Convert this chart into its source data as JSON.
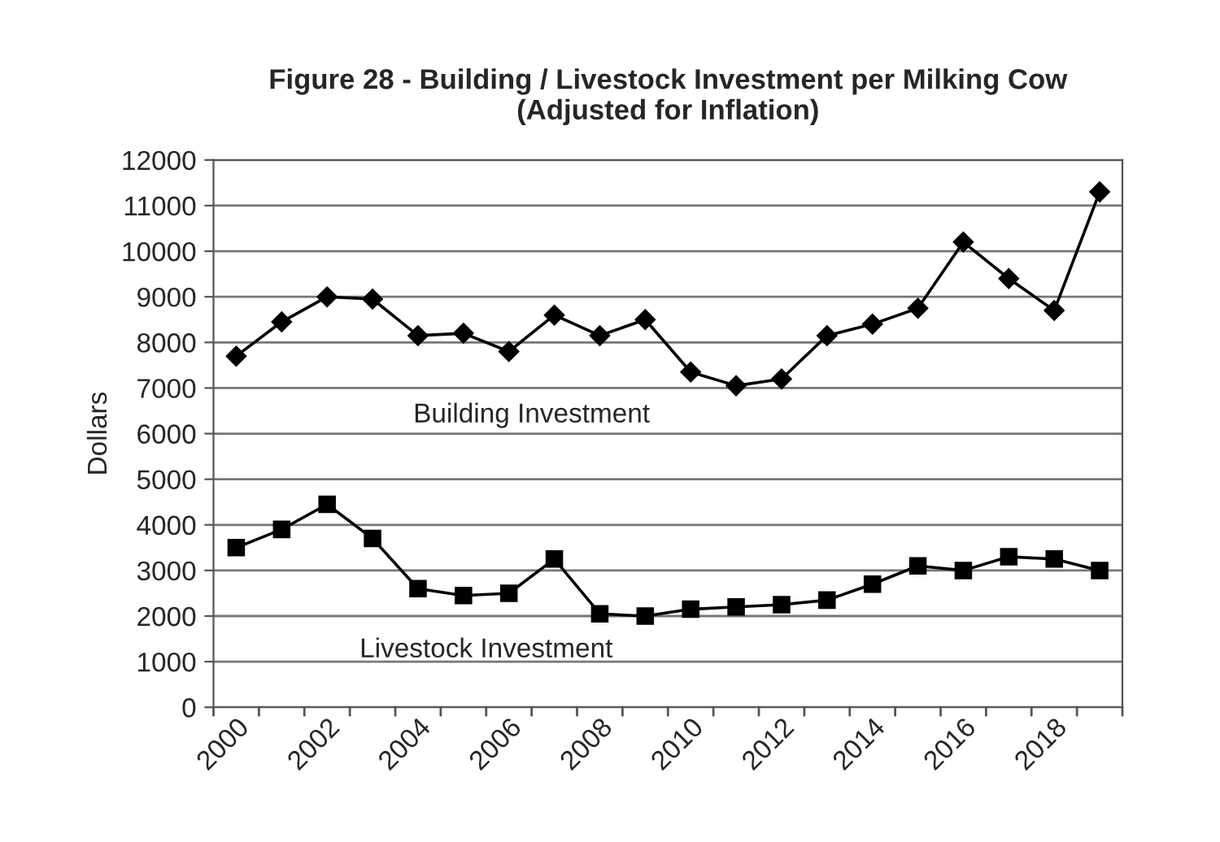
{
  "chart_data": {
    "type": "line",
    "title": "Figure 28 - Building / Livestock Investment per Milking Cow\n(Adjusted for Inflation)",
    "ylabel": "Dollars",
    "categories": [
      "2000",
      null,
      "2002",
      null,
      "2004",
      null,
      "2006",
      null,
      "2008",
      null,
      "2010",
      null,
      "2012",
      null,
      "2014",
      null,
      "2016",
      null,
      "2018",
      null
    ],
    "series": [
      {
        "name": "Building Investment",
        "color": "#000000",
        "marker": "diamond",
        "values": [
          7700,
          8450,
          9000,
          8950,
          8150,
          8200,
          7800,
          8600,
          8150,
          8500,
          7350,
          7050,
          7200,
          8150,
          8400,
          8750,
          10200,
          9400,
          8700,
          11300
        ]
      },
      {
        "name": "Livestock Investment",
        "color": "#000000",
        "marker": "square",
        "values": [
          3500,
          3900,
          4450,
          3700,
          2600,
          2450,
          2500,
          3250,
          2050,
          2000,
          2150,
          2200,
          2250,
          2350,
          2700,
          3100,
          3000,
          3300,
          3250,
          3000
        ]
      }
    ],
    "ylim": [
      0,
      12000
    ],
    "yticks": [
      0,
      1000,
      2000,
      3000,
      4000,
      5000,
      6000,
      7000,
      8000,
      9000,
      10000,
      11000,
      12000
    ],
    "grid": "y",
    "legend": false,
    "line_style": "solid"
  }
}
